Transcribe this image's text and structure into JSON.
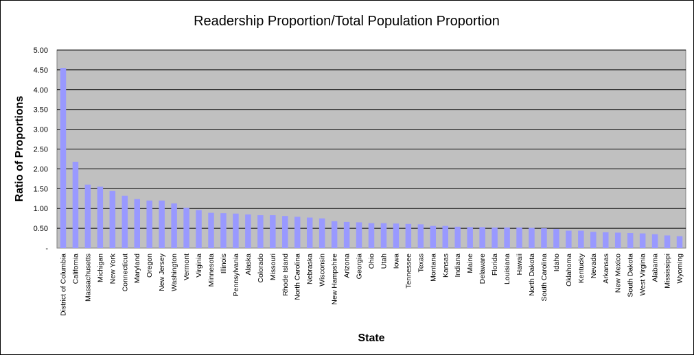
{
  "chart_data": {
    "type": "bar",
    "title": "Readership Proportion/Total Population Proportion",
    "xlabel": "State",
    "ylabel": "Ratio of Proportions",
    "ylim": [
      0,
      5
    ],
    "yticks": [
      "-",
      "0.50",
      "1.00",
      "1.50",
      "2.00",
      "2.50",
      "3.00",
      "3.50",
      "4.00",
      "4.50",
      "5.00"
    ],
    "grid": true,
    "colors": {
      "bar": "#9999ff",
      "plot_bg": "#c0c0c0",
      "grid": "#000000"
    },
    "categories": [
      "District of Columbia",
      "California",
      "Massachusetts",
      "Michigan",
      "New York",
      "Connecticut",
      "Maryland",
      "Oregon",
      "New Jersey",
      "Washington",
      "Vermont",
      "Virginia",
      "Minnesota",
      "Illinois",
      "Pennsylvania",
      "Alaska",
      "Colorado",
      "Missouri",
      "Rhode Island",
      "North Carolina",
      "Nebraska",
      "Wisconsin",
      "New Hampshire",
      "Arizona",
      "Georgia",
      "Ohio",
      "Utah",
      "Iowa",
      "Tennessee",
      "Texas",
      "Montana",
      "Kansas",
      "Indiana",
      "Maine",
      "Delaware",
      "Florida",
      "Louisiana",
      "Hawaii",
      "North Dakota",
      "South Carolina",
      "Idaho",
      "Oklahoma",
      "Kentucky",
      "Nevada",
      "Arkansas",
      "New Mexico",
      "South Dakota",
      "West Virginia",
      "Alabama",
      "Mississippi",
      "Wyoming"
    ],
    "values": [
      4.55,
      2.18,
      1.6,
      1.55,
      1.44,
      1.32,
      1.24,
      1.2,
      1.2,
      1.13,
      1.02,
      0.96,
      0.89,
      0.88,
      0.87,
      0.85,
      0.83,
      0.83,
      0.81,
      0.79,
      0.77,
      0.75,
      0.68,
      0.66,
      0.65,
      0.63,
      0.63,
      0.62,
      0.61,
      0.6,
      0.56,
      0.56,
      0.54,
      0.53,
      0.53,
      0.52,
      0.52,
      0.52,
      0.51,
      0.5,
      0.48,
      0.44,
      0.44,
      0.41,
      0.4,
      0.39,
      0.38,
      0.37,
      0.35,
      0.32,
      0.3
    ]
  }
}
